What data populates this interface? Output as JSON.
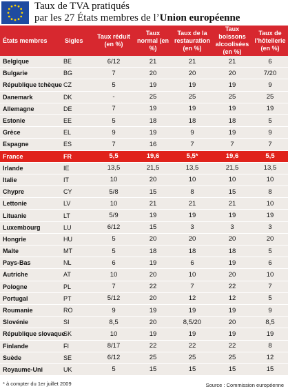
{
  "header": {
    "title": "Taux de TVA pratiqués",
    "subtitle": "par les 27 États membres de l’",
    "subtitle_emphasis": "Union européenne"
  },
  "table": {
    "columns": [
      "États membres",
      "Sigles",
      "Taux réduit (en %)",
      "Taux normal (en %)",
      "Taux de la restauration (en %)",
      "Taux boissons alcoolisées (en %)",
      "Taux de l’hôtellerie (en %)"
    ],
    "highlight_row": 8,
    "rows": [
      [
        "Belgique",
        "BE",
        "6/12",
        "21",
        "21",
        "21",
        "6"
      ],
      [
        "Bulgarie",
        "BG",
        "7",
        "20",
        "20",
        "20",
        "7/20"
      ],
      [
        "République tchèque",
        "CZ",
        "5",
        "19",
        "19",
        "19",
        "9"
      ],
      [
        "Danemark",
        "DK",
        "-",
        "25",
        "25",
        "25",
        "25"
      ],
      [
        "Allemagne",
        "DE",
        "7",
        "19",
        "19",
        "19",
        "19"
      ],
      [
        "Estonie",
        "EE",
        "5",
        "18",
        "18",
        "18",
        "5"
      ],
      [
        "Grèce",
        "EL",
        "9",
        "19",
        "9",
        "19",
        "9"
      ],
      [
        "Espagne",
        "ES",
        "7",
        "16",
        "7",
        "7",
        "7"
      ],
      [
        "France",
        "FR",
        "5,5",
        "19,6",
        "5,5*",
        "19,6",
        "5,5"
      ],
      [
        "Irlande",
        "IE",
        "13,5",
        "21,5",
        "13,5",
        "21,5",
        "13,5"
      ],
      [
        "Italie",
        "IT",
        "10",
        "20",
        "10",
        "10",
        "10"
      ],
      [
        "Chypre",
        "CY",
        "5/8",
        "15",
        "8",
        "15",
        "8"
      ],
      [
        "Lettonie",
        "LV",
        "10",
        "21",
        "21",
        "21",
        "10"
      ],
      [
        "Lituanie",
        "LT",
        "5/9",
        "19",
        "19",
        "19",
        "19"
      ],
      [
        "Luxembourg",
        "LU",
        "6/12",
        "15",
        "3",
        "3",
        "3"
      ],
      [
        "Hongrie",
        "HU",
        "5",
        "20",
        "20",
        "20",
        "20"
      ],
      [
        "Malte",
        "MT",
        "5",
        "18",
        "18",
        "18",
        "5"
      ],
      [
        "Pays-Bas",
        "NL",
        "6",
        "19",
        "6",
        "19",
        "6"
      ],
      [
        "Autriche",
        "AT",
        "10",
        "20",
        "10",
        "20",
        "10"
      ],
      [
        "Pologne",
        "PL",
        "7",
        "22",
        "7",
        "22",
        "7"
      ],
      [
        "Portugal",
        "PT",
        "5/12",
        "20",
        "12",
        "12",
        "5"
      ],
      [
        "Roumanie",
        "RO",
        "9",
        "19",
        "19",
        "19",
        "9"
      ],
      [
        "Slovénie",
        "SI",
        "8,5",
        "20",
        "8,5/20",
        "20",
        "8,5"
      ],
      [
        "République slovaque",
        "SK",
        "10",
        "19",
        "19",
        "19",
        "19"
      ],
      [
        "Finlande",
        "FI",
        "8/17",
        "22",
        "22",
        "22",
        "8"
      ],
      [
        "Suède",
        "SE",
        "6/12",
        "25",
        "25",
        "25",
        "12"
      ],
      [
        "Royaume-Uni",
        "UK",
        "5",
        "15",
        "15",
        "15",
        "15"
      ]
    ]
  },
  "footer": {
    "note": "* à compter du 1er juillet 2009",
    "source": "Source : Commission européenne"
  }
}
